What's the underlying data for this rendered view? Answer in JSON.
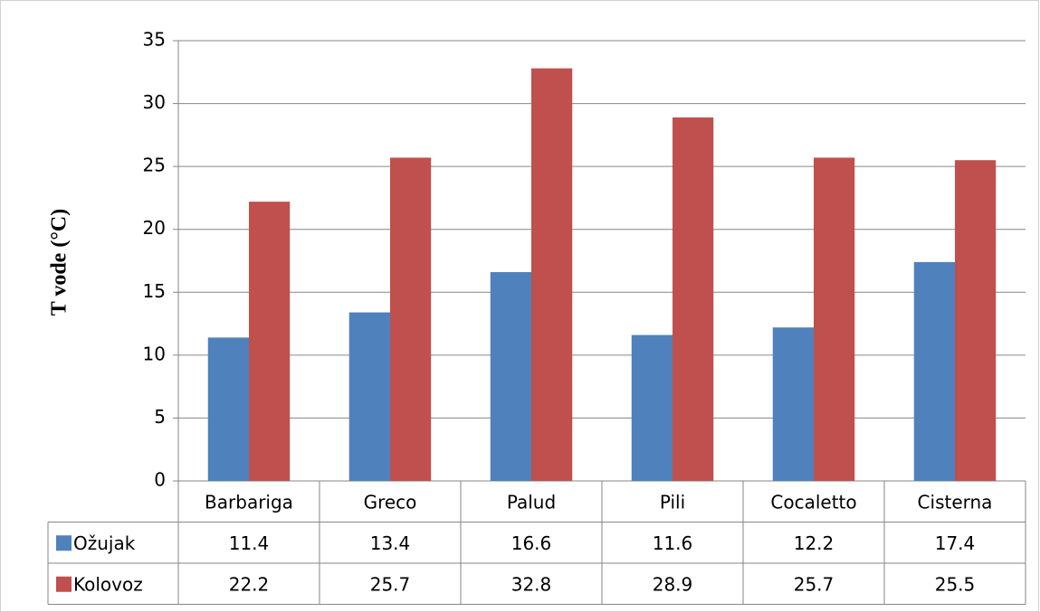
{
  "chart_data": {
    "type": "bar",
    "y_label": "T vode (°C)",
    "categories": [
      "Barbariga",
      "Greco",
      "Palud",
      "Pili",
      "Cocaletto",
      "Cisterna"
    ],
    "series": [
      {
        "name": "Ožujak",
        "color": "#4f81bd",
        "values": [
          11.4,
          13.4,
          16.6,
          11.6,
          12.2,
          17.4
        ]
      },
      {
        "name": "Kolovoz",
        "color": "#c0504d",
        "values": [
          22.2,
          25.7,
          32.8,
          28.9,
          25.7,
          25.5
        ]
      }
    ],
    "ylim": [
      0,
      35
    ],
    "yticks": [
      0,
      5,
      10,
      15,
      20,
      25,
      30,
      35
    ],
    "grid": true
  }
}
